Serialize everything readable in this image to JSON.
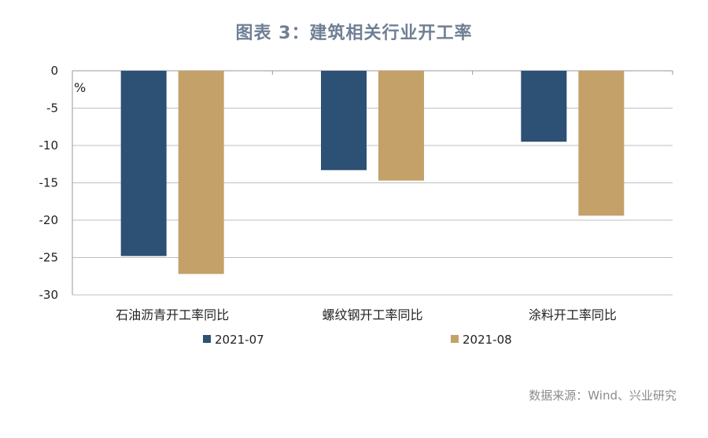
{
  "title": "图表 3：建筑相关行业开工率",
  "source": "数据来源：Wind、兴业研究",
  "colors": {
    "series1": "#2d5075",
    "series2": "#c4a169",
    "grid": "#bfbfbf",
    "axis": "#999999"
  },
  "chart_data": {
    "type": "bar",
    "unit": "%",
    "categories": [
      "石油沥青开工率同比",
      "螺纹钢开工率同比",
      "涂料开工率同比"
    ],
    "series": [
      {
        "name": "2021-07",
        "values": [
          -24.8,
          -13.3,
          -9.5
        ]
      },
      {
        "name": "2021-08",
        "values": [
          -27.2,
          -14.7,
          -19.4
        ]
      }
    ],
    "ylim": [
      -30,
      0
    ],
    "yticks": [
      0,
      -5,
      -10,
      -15,
      -20,
      -25,
      -30
    ],
    "grid": true,
    "legend_position": "bottom"
  }
}
